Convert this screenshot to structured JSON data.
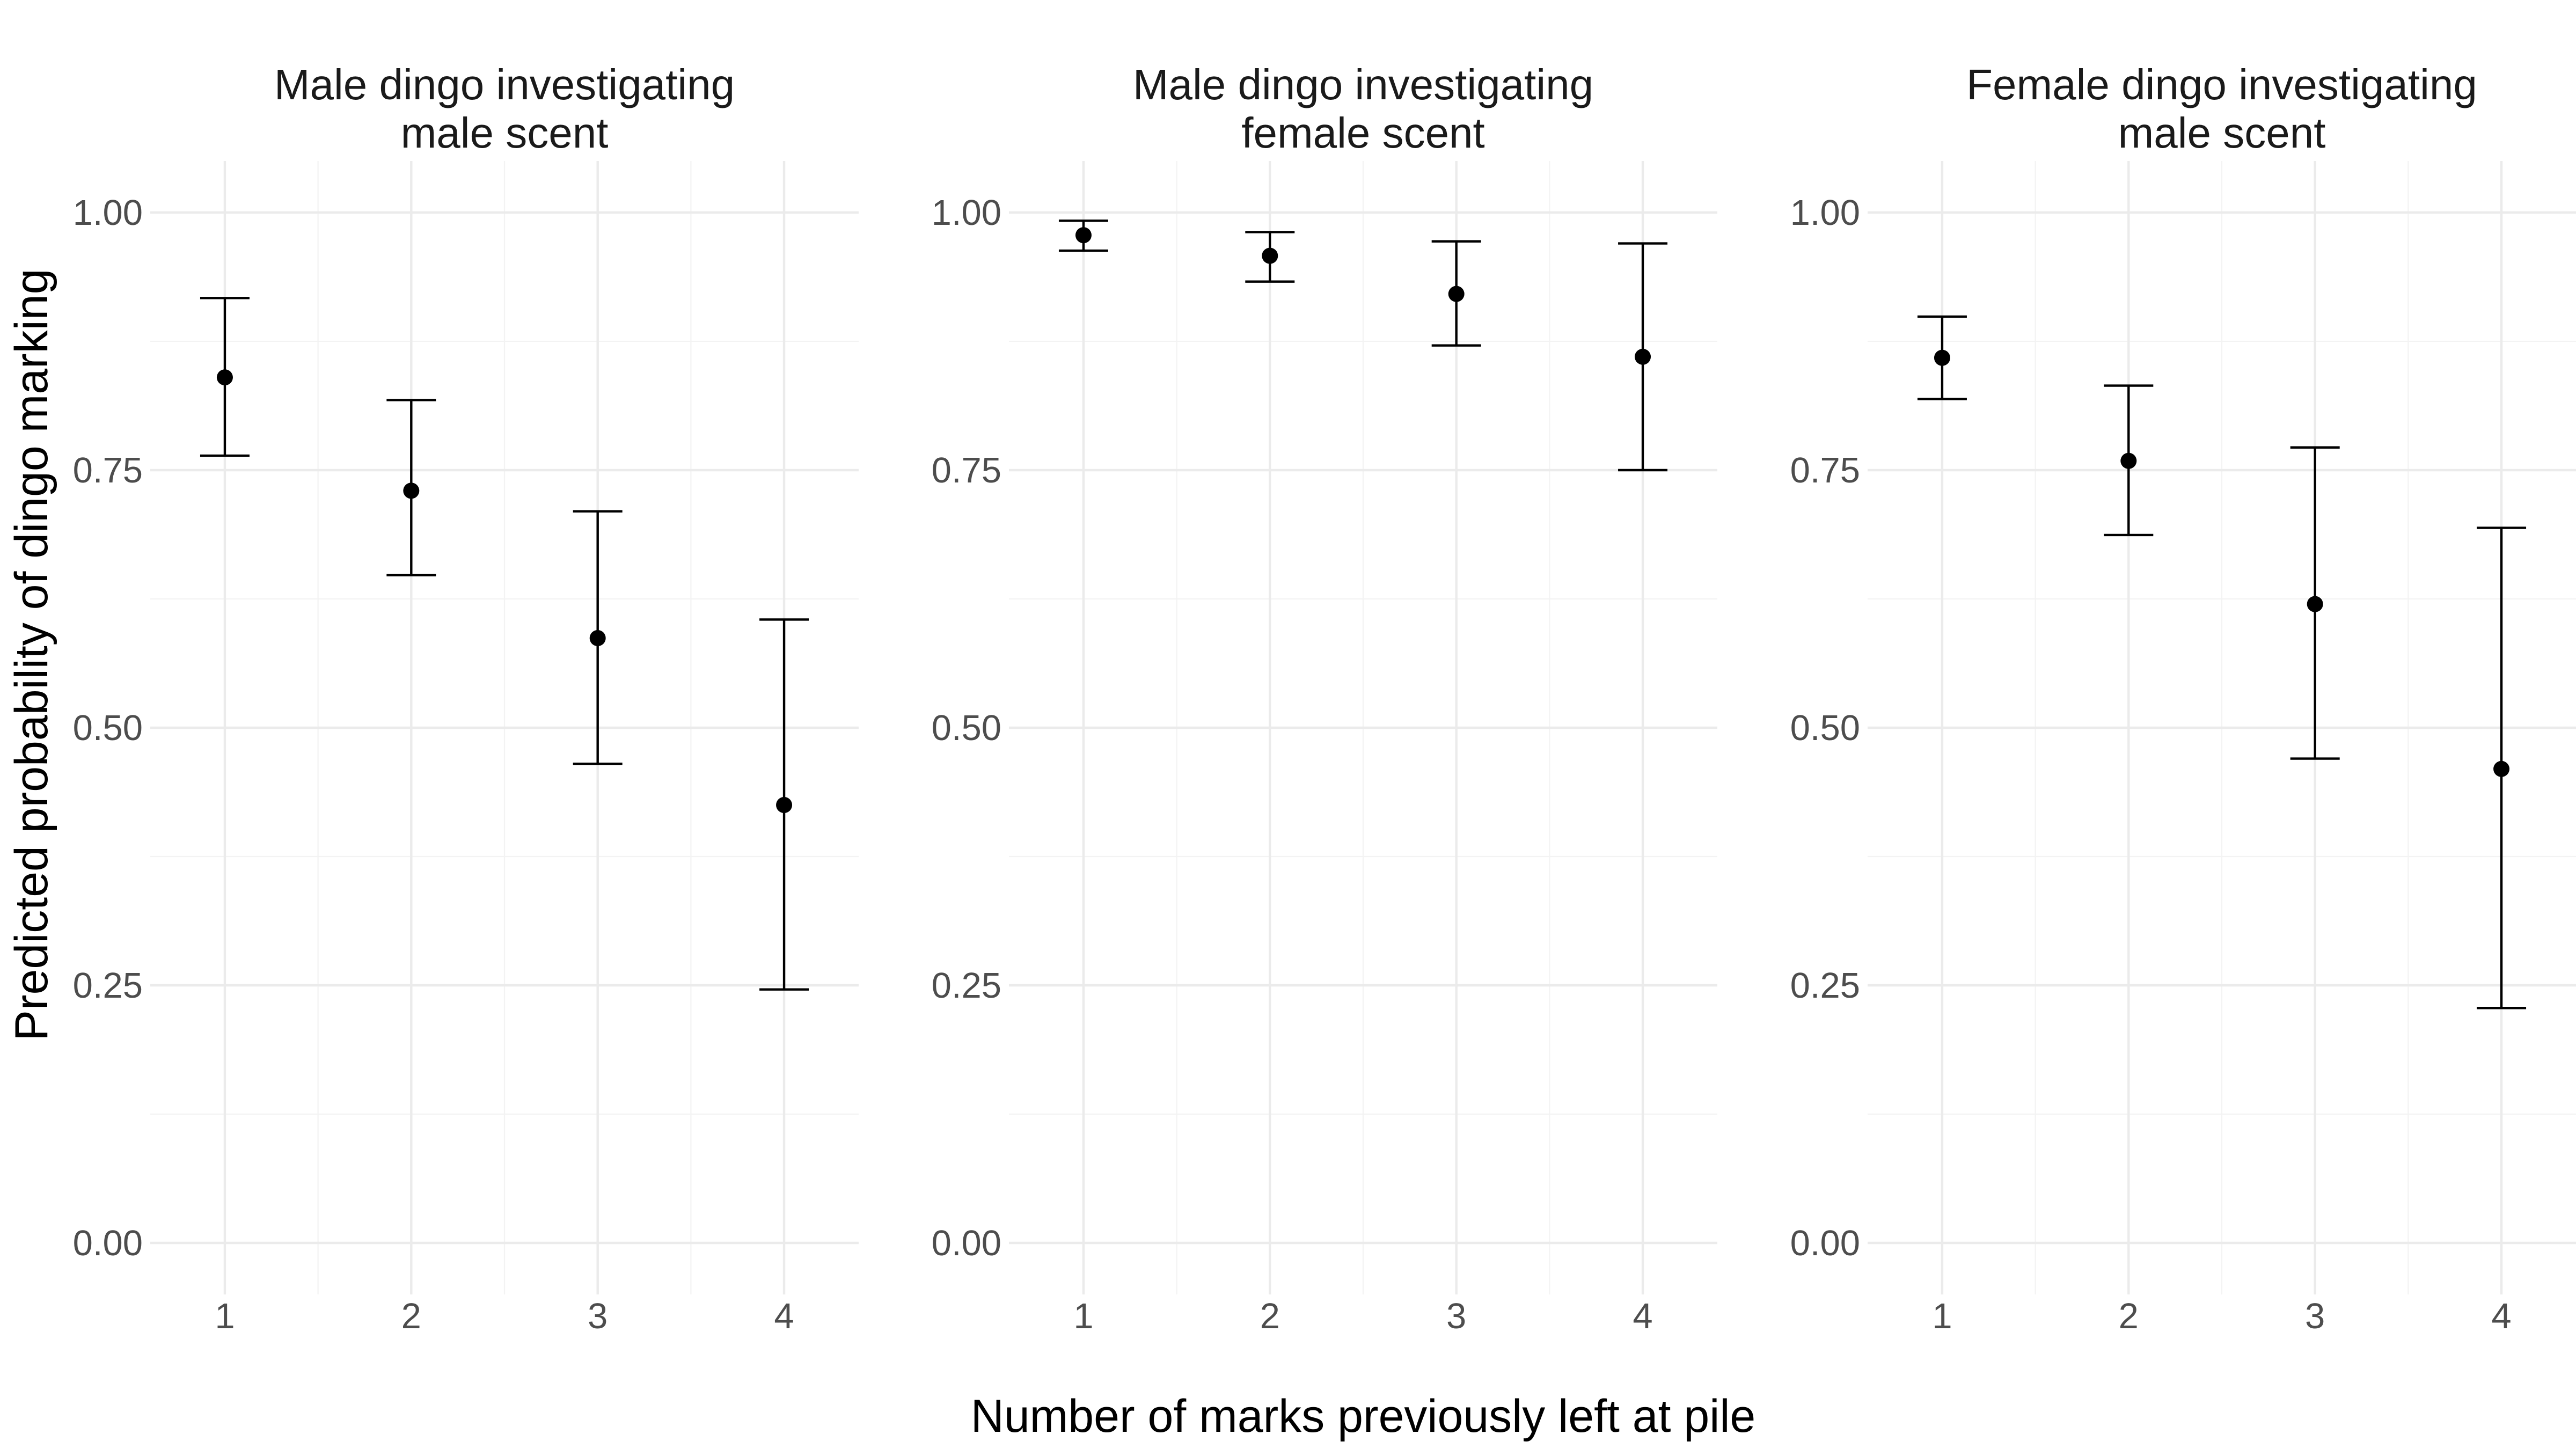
{
  "chart_data": {
    "type": "scatter",
    "subtype": "point-with-error-bars (faceted)",
    "xlabel": "Number of marks previously left at pile",
    "ylabel": "Predicted probability of dingo marking",
    "x_ticks": [
      "1",
      "2",
      "3",
      "4"
    ],
    "y_ticks": [
      "0.00",
      "0.25",
      "0.50",
      "0.75",
      "1.00"
    ],
    "ylim": [
      -0.05,
      1.05
    ],
    "grid": true,
    "legend": "none",
    "colors": {
      "points": "#000000",
      "error_bars": "#000000",
      "grid": "#ebebeb",
      "tick_text": "#4d4d4d"
    },
    "panels": [
      {
        "title": [
          "Male dingo investigating",
          "male scent"
        ],
        "x": [
          1,
          2,
          3,
          4
        ],
        "y": [
          0.84,
          0.73,
          0.587,
          0.425
        ],
        "lower": [
          0.764,
          0.648,
          0.465,
          0.246
        ],
        "upper": [
          0.917,
          0.818,
          0.71,
          0.605
        ]
      },
      {
        "title": [
          "Male dingo investigating",
          "female scent"
        ],
        "x": [
          1,
          2,
          3,
          4
        ],
        "y": [
          0.978,
          0.958,
          0.921,
          0.86
        ],
        "lower": [
          0.963,
          0.933,
          0.871,
          0.75
        ],
        "upper": [
          0.992,
          0.981,
          0.972,
          0.97
        ]
      },
      {
        "title": [
          "Female dingo investigating",
          "male scent"
        ],
        "x": [
          1,
          2,
          3,
          4
        ],
        "y": [
          0.859,
          0.759,
          0.62,
          0.46
        ],
        "lower": [
          0.819,
          0.687,
          0.47,
          0.228
        ],
        "upper": [
          0.899,
          0.832,
          0.772,
          0.694
        ]
      }
    ]
  }
}
